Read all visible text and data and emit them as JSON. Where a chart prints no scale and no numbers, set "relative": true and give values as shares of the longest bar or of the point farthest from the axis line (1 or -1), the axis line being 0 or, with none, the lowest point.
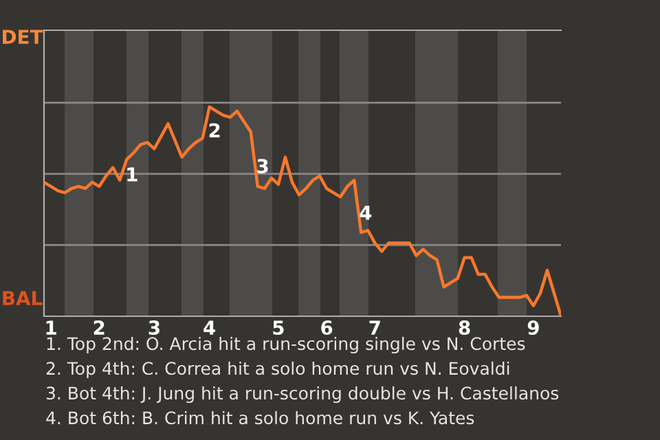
{
  "chart_data": {
    "type": "line",
    "color": "#f7782c",
    "relative": true,
    "categories": [
      null,
      "1",
      null,
      null,
      null,
      null,
      null,
      null,
      "2",
      null,
      null,
      null,
      null,
      null,
      null,
      null,
      "3",
      null,
      null,
      null,
      null,
      null,
      null,
      null,
      "4",
      null,
      null,
      null,
      null,
      null,
      null,
      null,
      null,
      null,
      "5",
      null,
      null,
      null,
      null,
      null,
      null,
      "6",
      null,
      null,
      null,
      null,
      null,
      null,
      "7",
      null,
      null,
      null,
      null,
      null,
      null,
      null,
      null,
      null,
      null,
      null,
      null,
      "8",
      null,
      null,
      null,
      null,
      null,
      null,
      null,
      null,
      null,
      "9",
      null,
      null,
      null,
      null
    ],
    "values": [
      0.64,
      0.62,
      0.6,
      0.59,
      0.61,
      0.62,
      0.61,
      0.64,
      0.62,
      0.67,
      0.71,
      0.65,
      0.75,
      0.78,
      0.82,
      0.83,
      0.8,
      0.86,
      0.92,
      0.84,
      0.76,
      0.8,
      0.83,
      0.85,
      1,
      0.98,
      0.96,
      0.95,
      0.98,
      0.93,
      0.88,
      0.62,
      0.61,
      0.66,
      0.63,
      0.76,
      0.64,
      0.58,
      0.61,
      0.65,
      0.67,
      0.61,
      0.59,
      0.57,
      0.62,
      0.65,
      0.4,
      0.41,
      0.35,
      0.31,
      0.35,
      0.35,
      0.35,
      0.35,
      0.29,
      0.32,
      0.29,
      0.27,
      0.14,
      0.16,
      0.18,
      0.28,
      0.28,
      0.2,
      0.2,
      0.14,
      0.09,
      0.09,
      0.09,
      0.09,
      0.1,
      0.05,
      0.11,
      0.22,
      0.11,
      0
    ],
    "ref_lines": [
      {
        "axis": "y",
        "value": 0.34,
        "color": "#8a8886"
      },
      {
        "axis": "y",
        "value": 0.68,
        "color": "#8a8886"
      },
      {
        "axis": "y",
        "value": 1.02,
        "color": "#8a8886"
      }
    ],
    "marker": "none",
    "line_style": "solid",
    "annotations": [
      "DET",
      "BAL",
      "1",
      "2",
      "3",
      "4",
      "1. Top 2nd: O. Arcia hit a run-scoring single vs N. Cortes",
      "2. Top 4th: C. Correa hit a solo home run vs N. Eovaldi",
      "3. Bot 4th: J. Jung hit a run-scoring double vs H. Castellanos",
      "4. Bot 6th: B. Crim hit a solo home run vs K. Yates"
    ]
  }
}
